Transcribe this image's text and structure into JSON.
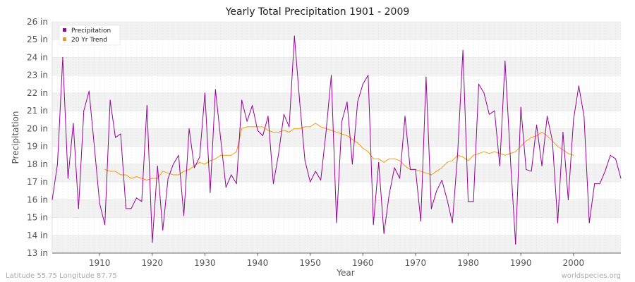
{
  "chart_data": {
    "type": "line",
    "title": "Yearly Total Precipitation 1901 - 2009",
    "xlabel": "Year",
    "ylabel": "Precipitation",
    "xlim": [
      1901,
      2009
    ],
    "ylim": [
      13,
      26
    ],
    "x_ticks": [
      1910,
      1920,
      1930,
      1940,
      1950,
      1960,
      1970,
      1980,
      1990,
      2000
    ],
    "y_ticks": [
      13,
      14,
      15,
      16,
      17,
      18,
      19,
      20,
      21,
      22,
      23,
      24,
      25,
      26
    ],
    "y_tick_labels": [
      "13 in",
      "14 in",
      "15 in",
      "16 in",
      "17 in",
      "18 in",
      "19 in",
      "20 in",
      "21 in",
      "22 in",
      "23 in",
      "24 in",
      "25 in",
      "26 in"
    ],
    "grid": true,
    "legend_position": "top-left",
    "colors": {
      "precipitation": "#990099",
      "trend": "#ff9900"
    },
    "series": [
      {
        "name": "Precipitation",
        "color": "#990099",
        "x_start": 1901,
        "values": [
          16.0,
          18.0,
          24.0,
          17.2,
          20.3,
          15.5,
          21.0,
          22.1,
          19.0,
          15.8,
          14.6,
          21.6,
          19.5,
          19.7,
          15.5,
          15.5,
          16.1,
          15.9,
          21.3,
          13.6,
          17.9,
          14.3,
          17.2,
          18.0,
          18.5,
          15.1,
          20.0,
          17.8,
          18.4,
          22.0,
          16.4,
          22.2,
          19.4,
          16.7,
          17.4,
          16.9,
          21.6,
          20.4,
          21.3,
          19.9,
          19.6,
          20.7,
          16.9,
          18.6,
          20.8,
          20.1,
          25.2,
          21.5,
          18.2,
          17.0,
          17.6,
          17.1,
          19.8,
          23.0,
          14.7,
          20.4,
          21.5,
          18.0,
          21.5,
          22.5,
          23.0,
          14.6,
          18.1,
          14.1,
          16.3,
          17.8,
          17.2,
          20.7,
          17.7,
          17.7,
          14.8,
          22.9,
          15.5,
          16.5,
          17.1,
          16.0,
          14.7,
          18.6,
          24.4,
          15.9,
          15.9,
          22.5,
          22.0,
          20.8,
          21.0,
          17.9,
          23.8,
          18.4,
          13.5,
          21.2,
          17.7,
          17.6,
          20.2,
          17.9,
          20.7,
          19.3,
          14.7,
          19.8,
          16.0,
          20.5,
          22.4,
          20.7,
          14.7,
          16.9,
          16.9,
          17.6,
          18.5,
          18.3,
          17.2
        ]
      },
      {
        "name": "20 Yr Trend",
        "color": "#ff9900",
        "x_start": 1911,
        "values": [
          17.7,
          17.6,
          17.6,
          17.4,
          17.4,
          17.2,
          17.3,
          17.2,
          17.1,
          17.2,
          17.2,
          17.6,
          17.5,
          17.4,
          17.4,
          17.6,
          17.7,
          17.9,
          18.1,
          18.0,
          18.2,
          18.3,
          18.5,
          18.5,
          18.5,
          18.7,
          20.0,
          20.1,
          20.1,
          20.1,
          20.1,
          19.9,
          19.8,
          19.8,
          19.9,
          19.8,
          20.0,
          20.0,
          20.1,
          20.1,
          20.3,
          20.1,
          20.0,
          19.9,
          19.8,
          19.7,
          19.6,
          19.4,
          19.2,
          18.9,
          18.7,
          18.3,
          18.3,
          18.1,
          18.3,
          18.3,
          18.2,
          17.9,
          17.7,
          17.7,
          17.6,
          17.5,
          17.4,
          17.6,
          17.8,
          18.1,
          18.2,
          18.5,
          18.4,
          18.2,
          18.5,
          18.6,
          18.7,
          18.6,
          18.7,
          18.6,
          18.5,
          18.6,
          18.7,
          19.0,
          19.3,
          19.5,
          19.6,
          19.8,
          19.6,
          19.3,
          19.0,
          18.8,
          18.6,
          18.5
        ]
      }
    ]
  },
  "footer": {
    "location": "Latitude 55.75 Longitude 87.75",
    "source": "worldspecies.org"
  }
}
